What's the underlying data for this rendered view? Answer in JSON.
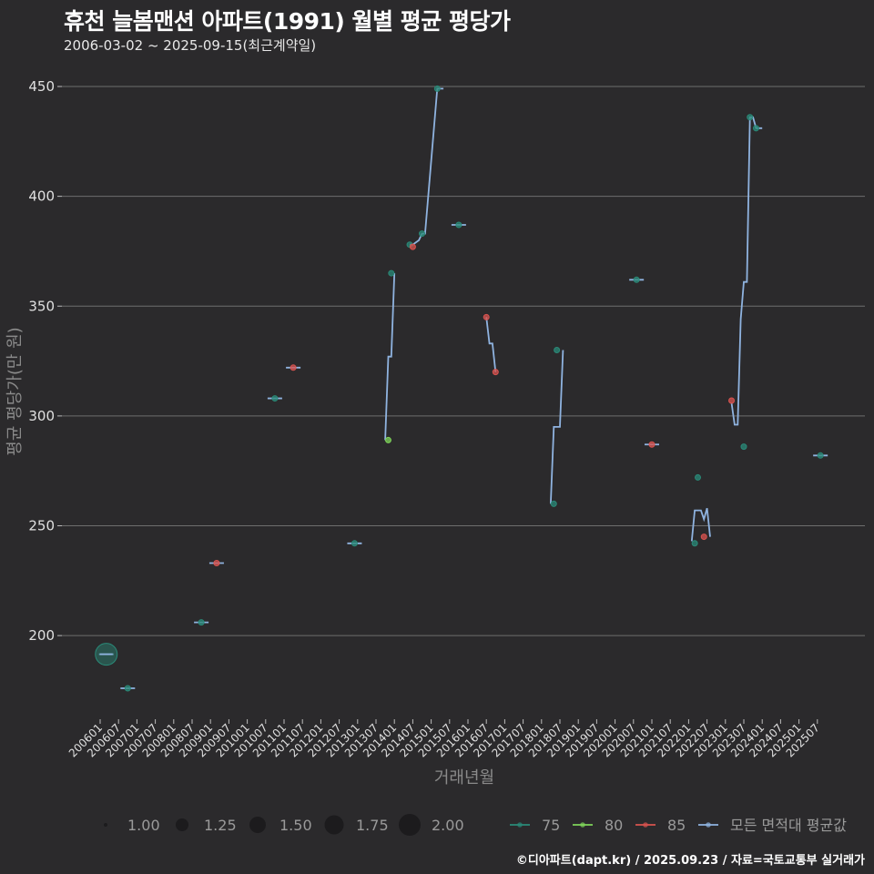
{
  "header": {
    "title": "휴천 늘봄맨션 아파트(1991) 월별 평균 평당가",
    "subtitle": "2006-03-02 ~ 2025-09-15(최근계약일)"
  },
  "footer": {
    "credit": "©디아파트(dapt.kr) / 2025.09.23 / 자료=국토교통부 실거래가"
  },
  "colors": {
    "background": "#2b2a2c",
    "grid": "#6e6e6e",
    "area_75": "#2a8a78",
    "area_80": "#7fd45a",
    "area_85": "#d9534f",
    "all_avg": "#8fb3e0"
  },
  "chart_data": {
    "type": "line",
    "title": "휴천 늘봄맨션 아파트(1991) 월별 평균 평당가",
    "subtitle": "2006-03-02 ~ 2025-09-15(최근계약일)",
    "xlabel": "거래년월",
    "ylabel": "평균 평당가(만 원)",
    "ylim": [
      163,
      457
    ],
    "yticks": [
      200,
      250,
      300,
      350,
      400,
      450
    ],
    "grid": true,
    "categories": [
      "200601",
      "200607",
      "200701",
      "200707",
      "200801",
      "200807",
      "200901",
      "200907",
      "201001",
      "201007",
      "201101",
      "201107",
      "201201",
      "201207",
      "201301",
      "201307",
      "201401",
      "201407",
      "201501",
      "201507",
      "201601",
      "201607",
      "201701",
      "201707",
      "201801",
      "201807",
      "201901",
      "201907",
      "202001",
      "202007",
      "202101",
      "202107",
      "202201",
      "202207",
      "202301",
      "202307",
      "202401",
      "202407",
      "202501",
      "202507"
    ],
    "legend": {
      "size": {
        "title": "",
        "values": [
          "1.00",
          "1.25",
          "1.50",
          "1.75",
          "2.00"
        ]
      },
      "color": [
        "75",
        "80",
        "85",
        "모든 면적대 평균값"
      ],
      "position": "bottom"
    },
    "series": [
      {
        "name": "75",
        "points": [
          {
            "month": "200603",
            "value": 191.5,
            "count": 2
          },
          {
            "month": "200610",
            "value": 176,
            "count": 1
          },
          {
            "month": "200810",
            "value": 206,
            "count": 1
          },
          {
            "month": "201010",
            "value": 308,
            "count": 1
          },
          {
            "month": "201212",
            "value": 242,
            "count": 1
          },
          {
            "month": "201312",
            "value": 365,
            "count": 1
          },
          {
            "month": "201406",
            "value": 378,
            "count": 1
          },
          {
            "month": "201410",
            "value": 383,
            "count": 1
          },
          {
            "month": "201503",
            "value": 449,
            "count": 1
          },
          {
            "month": "201510",
            "value": 387,
            "count": 1
          },
          {
            "month": "201805",
            "value": 260,
            "count": 1
          },
          {
            "month": "201806",
            "value": 330,
            "count": 1
          },
          {
            "month": "202008",
            "value": 362,
            "count": 1
          },
          {
            "month": "202203",
            "value": 242,
            "count": 1
          },
          {
            "month": "202204",
            "value": 272,
            "count": 1
          },
          {
            "month": "202307",
            "value": 286,
            "count": 1
          },
          {
            "month": "202309",
            "value": 436,
            "count": 1
          },
          {
            "month": "202311",
            "value": 431,
            "count": 1
          },
          {
            "month": "202508",
            "value": 282,
            "count": 1
          }
        ]
      },
      {
        "name": "80",
        "points": [
          {
            "month": "201311",
            "value": 289,
            "count": 1
          }
        ]
      },
      {
        "name": "85",
        "points": [
          {
            "month": "200903",
            "value": 233,
            "count": 1
          },
          {
            "month": "201104",
            "value": 322,
            "count": 1
          },
          {
            "month": "201407",
            "value": 377,
            "count": 1
          },
          {
            "month": "201607",
            "value": 345,
            "count": 1
          },
          {
            "month": "201610",
            "value": 320,
            "count": 1
          },
          {
            "month": "202101",
            "value": 287,
            "count": 1
          },
          {
            "month": "202206",
            "value": 245,
            "count": 1
          },
          {
            "month": "202303",
            "value": 307,
            "count": 1
          }
        ]
      },
      {
        "name": "모든 면적대 평균값",
        "segments": [
          [
            [
              "200603",
              191.5
            ]
          ],
          [
            [
              "200610",
              176
            ]
          ],
          [
            [
              "200810",
              206
            ]
          ],
          [
            [
              "200903",
              233
            ]
          ],
          [
            [
              "201010",
              308
            ]
          ],
          [
            [
              "201104",
              322
            ]
          ],
          [
            [
              "201212",
              242
            ]
          ],
          [
            [
              "201310",
              289
            ],
            [
              "201311",
              327
            ],
            [
              "201312",
              327
            ],
            [
              "201401",
              365
            ]
          ],
          [
            [
              "201406",
              378
            ],
            [
              "201407",
              378
            ],
            [
              "201409",
              380
            ],
            [
              "201410",
              383
            ],
            [
              "201411",
              383
            ],
            [
              "201503",
              449
            ],
            [
              "201505",
              449
            ]
          ],
          [
            [
              "201510",
              387
            ]
          ],
          [
            [
              "201607",
              345
            ],
            [
              "201608",
              333
            ],
            [
              "201609",
              333
            ],
            [
              "201610",
              320
            ]
          ],
          [
            [
              "201804",
              260
            ],
            [
              "201805",
              295
            ],
            [
              "201807",
              295
            ],
            [
              "201808",
              330
            ]
          ],
          [
            [
              "202008",
              362
            ]
          ],
          [
            [
              "202101",
              287
            ]
          ],
          [
            [
              "202202",
              243
            ],
            [
              "202203",
              257
            ],
            [
              "202205",
              257
            ],
            [
              "202206",
              253
            ],
            [
              "202207",
              258
            ],
            [
              "202208",
              245
            ]
          ],
          [
            [
              "202303",
              306
            ],
            [
              "202304",
              296
            ],
            [
              "202305",
              296
            ],
            [
              "202306",
              344
            ],
            [
              "202307",
              361
            ],
            [
              "202308",
              361
            ],
            [
              "202309",
              436
            ],
            [
              "202310",
              436
            ],
            [
              "202311",
              431
            ],
            [
              "202401",
              431
            ]
          ],
          [
            [
              "202508",
              282
            ]
          ]
        ]
      }
    ]
  },
  "axis": {
    "x_title": "거래년월",
    "y_title": "평균 평당가(만 원)",
    "y_ticks": [
      "450",
      "400",
      "350",
      "300",
      "250",
      "200"
    ],
    "x_ticks": [
      "200601",
      "200607",
      "200701",
      "200707",
      "200801",
      "200807",
      "200901",
      "200907",
      "201001",
      "201007",
      "201101",
      "201107",
      "201201",
      "201207",
      "201301",
      "201307",
      "201401",
      "201407",
      "201501",
      "201507",
      "201601",
      "201607",
      "201701",
      "201707",
      "201801",
      "201807",
      "201901",
      "201907",
      "202001",
      "202007",
      "202101",
      "202107",
      "202201",
      "202207",
      "202301",
      "202307",
      "202401",
      "202407",
      "202501",
      "202507"
    ]
  },
  "legend": {
    "sizes": [
      {
        "label": "1.00",
        "r": 2
      },
      {
        "label": "1.25",
        "r": 7
      },
      {
        "label": "1.50",
        "r": 9
      },
      {
        "label": "1.75",
        "r": 10.5
      },
      {
        "label": "2.00",
        "r": 12
      }
    ],
    "colors": [
      {
        "label": "75",
        "color": "#2a8a78"
      },
      {
        "label": "80",
        "color": "#7fd45a"
      },
      {
        "label": "85",
        "color": "#d9534f"
      },
      {
        "label": "모든 면적대 평균값",
        "color": "#8fb3e0"
      }
    ]
  }
}
